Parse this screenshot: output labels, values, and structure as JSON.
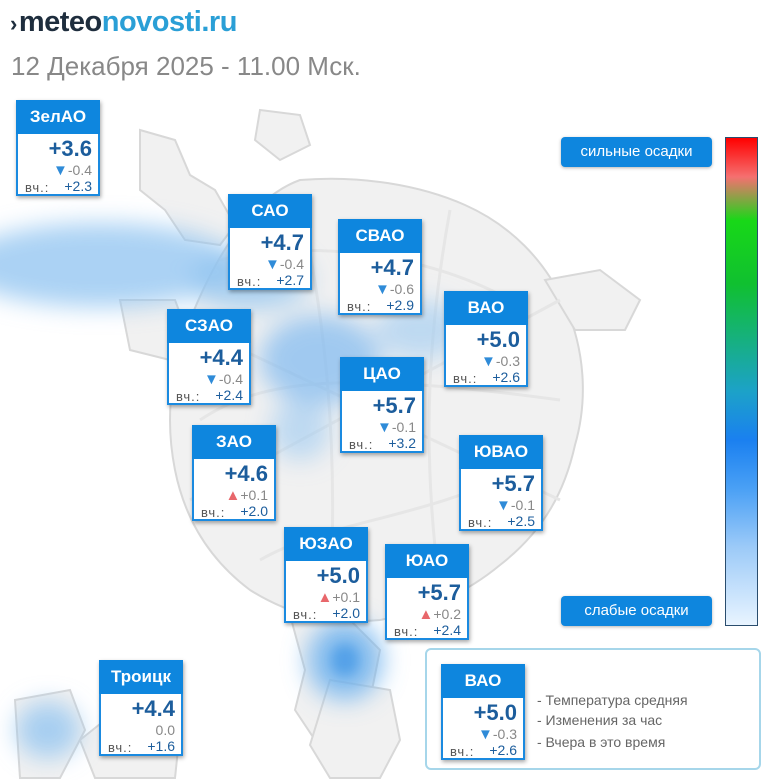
{
  "logo": {
    "mark": "›",
    "part1": "meteo",
    "part2": "novosti.ru"
  },
  "datetime": "12 Декабря 2025 - 11.00 Мск.",
  "districts": [
    {
      "id": "zelao",
      "name": "ЗелАО",
      "temp": "+3.6",
      "dir": "down",
      "change": "-0.4",
      "yesterday_label": "вч.:",
      "yesterday": "+2.3"
    },
    {
      "id": "sao",
      "name": "САО",
      "temp": "+4.7",
      "dir": "down",
      "change": "-0.4",
      "yesterday_label": "вч.:",
      "yesterday": "+2.7"
    },
    {
      "id": "svao",
      "name": "СВАО",
      "temp": "+4.7",
      "dir": "down",
      "change": "-0.6",
      "yesterday_label": "вч.:",
      "yesterday": "+2.9"
    },
    {
      "id": "vao",
      "name": "ВАО",
      "temp": "+5.0",
      "dir": "down",
      "change": "-0.3",
      "yesterday_label": "вч.:",
      "yesterday": "+2.6"
    },
    {
      "id": "szao",
      "name": "СЗАО",
      "temp": "+4.4",
      "dir": "down",
      "change": "-0.4",
      "yesterday_label": "вч.:",
      "yesterday": "+2.4"
    },
    {
      "id": "cao",
      "name": "ЦАО",
      "temp": "+5.7",
      "dir": "down",
      "change": "-0.1",
      "yesterday_label": "вч.:",
      "yesterday": "+3.2"
    },
    {
      "id": "zao",
      "name": "ЗАО",
      "temp": "+4.6",
      "dir": "up",
      "change": "+0.1",
      "yesterday_label": "вч.:",
      "yesterday": "+2.0"
    },
    {
      "id": "yuvao",
      "name": "ЮВАО",
      "temp": "+5.7",
      "dir": "down",
      "change": "-0.1",
      "yesterday_label": "вч.:",
      "yesterday": "+2.5"
    },
    {
      "id": "yuzao",
      "name": "ЮЗАО",
      "temp": "+5.0",
      "dir": "up",
      "change": "+0.1",
      "yesterday_label": "вч.:",
      "yesterday": "+2.0"
    },
    {
      "id": "yuao",
      "name": "ЮАО",
      "temp": "+5.7",
      "dir": "up",
      "change": "+0.2",
      "yesterday_label": "вч.:",
      "yesterday": "+2.4"
    },
    {
      "id": "troitsk",
      "name": "Троицк",
      "temp": "+4.4",
      "dir": "none",
      "change": "0.0",
      "yesterday_label": "вч.:",
      "yesterday": "+1.6"
    }
  ],
  "precipitation_scale": {
    "top_label": "сильные осадки",
    "bottom_label": "слабые осадки",
    "colors": [
      "#ff0000",
      "#f57070",
      "#18d818",
      "#1ca2c8",
      "#1a80f0",
      "#9ccaf8",
      "#e8f4ff"
    ]
  },
  "legend": {
    "sample": {
      "name": "ВАО",
      "temp": "+5.0",
      "dir": "down",
      "change": "-0.3",
      "yesterday_label": "вч.:",
      "yesterday": "+2.6"
    },
    "line_temp": "- Температура средняя",
    "line_change": "- Изменения за час",
    "line_yesterday": "- Вчера в это время"
  },
  "colors": {
    "accent": "#0e86de",
    "temp_text": "#1c5d9c",
    "up": "#e8676b",
    "down": "#2f8bd8"
  }
}
